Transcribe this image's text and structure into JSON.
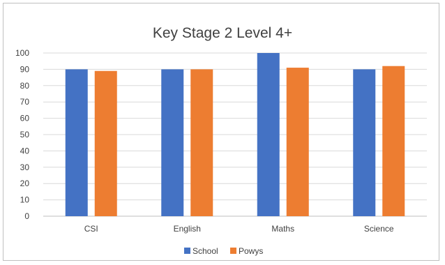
{
  "chart_data": {
    "type": "bar",
    "title": "Key Stage 2 Level 4+",
    "xlabel": "",
    "ylabel": "",
    "categories": [
      "CSI",
      "English",
      "Maths",
      "Science"
    ],
    "series": [
      {
        "name": "School",
        "color": "#4472c4",
        "values": [
          90,
          90,
          100,
          90
        ]
      },
      {
        "name": "Powys",
        "color": "#ed7d31",
        "values": [
          89,
          90,
          91,
          92
        ]
      }
    ],
    "ylim": [
      0,
      100
    ],
    "yticks": [
      0,
      10,
      20,
      30,
      40,
      50,
      60,
      70,
      80,
      90,
      100
    ],
    "grid": true,
    "legend": "bottom"
  }
}
